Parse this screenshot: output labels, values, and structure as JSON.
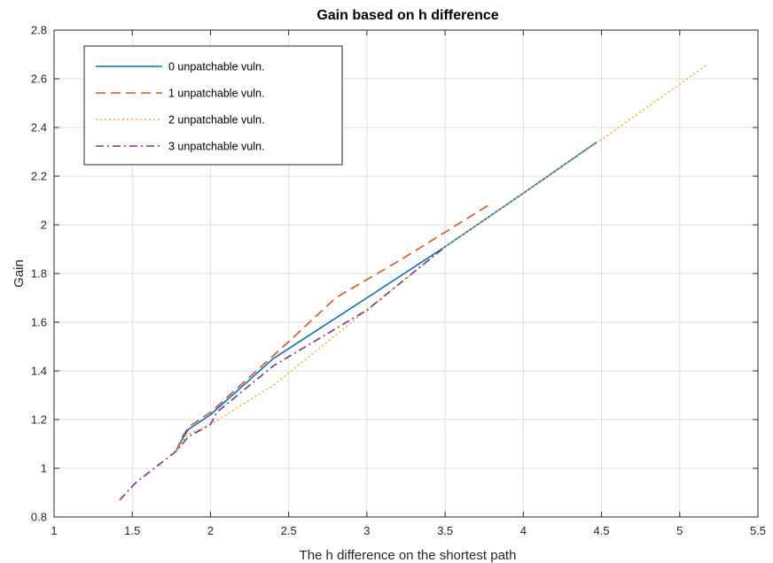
{
  "chart_data": {
    "type": "line",
    "title": "Gain based on h difference",
    "xlabel": "The h difference on the shortest path",
    "ylabel": "Gain",
    "xlim": [
      1,
      5.5
    ],
    "ylim": [
      0.8,
      2.8
    ],
    "xticks": [
      "1",
      "1.5",
      "2",
      "2.5",
      "3",
      "3.5",
      "4",
      "4.5",
      "5",
      "5.5"
    ],
    "yticks": [
      "0.8",
      "1",
      "1.2",
      "1.4",
      "1.6",
      "1.8",
      "2",
      "2.2",
      "2.4",
      "2.6",
      "2.8"
    ],
    "grid": true,
    "legend_position": "top-left",
    "series": [
      {
        "name": "0 unpatchable vuln.",
        "color": "#0072BD",
        "dash": "solid",
        "x": [
          1.78,
          1.82,
          1.86,
          2.0,
          2.4,
          3.0,
          3.5,
          4.0,
          4.47
        ],
        "y": [
          1.07,
          1.12,
          1.16,
          1.22,
          1.45,
          1.7,
          1.91,
          2.13,
          2.34
        ]
      },
      {
        "name": "1 unpatchable vuln.",
        "color": "#D95319",
        "dash": "dashed",
        "x": [
          1.78,
          1.82,
          1.86,
          2.0,
          2.5,
          2.8,
          3.2,
          3.6,
          3.8
        ],
        "y": [
          1.07,
          1.13,
          1.17,
          1.23,
          1.52,
          1.7,
          1.85,
          2.01,
          2.09
        ]
      },
      {
        "name": "2 unpatchable vuln.",
        "color": "#EDB120",
        "dash": "dotted",
        "x": [
          1.78,
          1.82,
          1.86,
          2.0,
          2.4,
          3.0,
          3.5,
          4.0,
          4.5,
          5.18
        ],
        "y": [
          1.07,
          1.11,
          1.14,
          1.18,
          1.34,
          1.65,
          1.91,
          2.13,
          2.35,
          2.66
        ]
      },
      {
        "name": "3 unpatchable vuln.",
        "color": "#7E2F8E",
        "dash": "dashdot",
        "x": [
          1.42,
          1.52,
          1.78,
          1.82,
          1.86,
          2.0,
          2.04,
          2.4,
          3.0,
          3.5
        ],
        "y": [
          0.87,
          0.94,
          1.07,
          1.1,
          1.13,
          1.18,
          1.23,
          1.42,
          1.65,
          1.91
        ]
      }
    ]
  }
}
